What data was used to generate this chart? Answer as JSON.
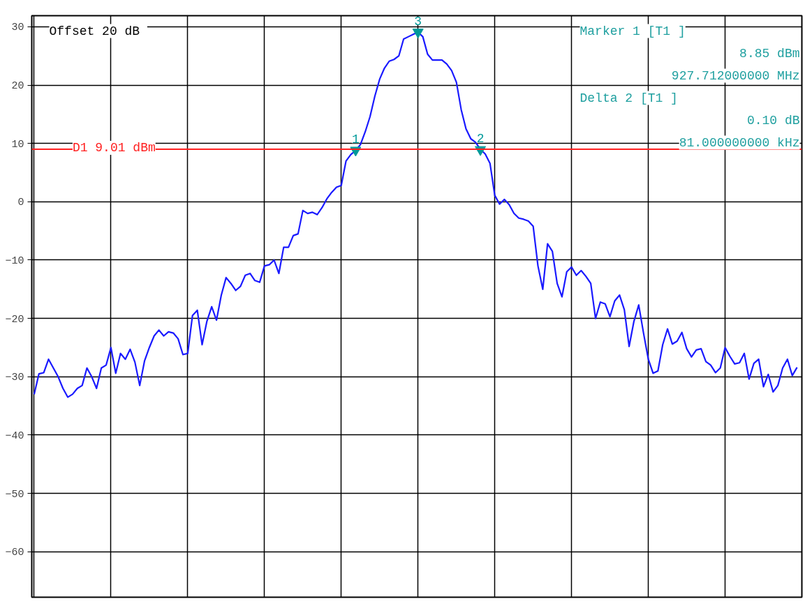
{
  "chart_data": {
    "type": "line",
    "categories": [
      null,
      null,
      null,
      null,
      null,
      null,
      null,
      null,
      null,
      null,
      null,
      null,
      null,
      null,
      null,
      null,
      null,
      null,
      null,
      null,
      null,
      null,
      null,
      null,
      null,
      null,
      null,
      null,
      null,
      null,
      null,
      null,
      null,
      null,
      null,
      null,
      null,
      null,
      null,
      null,
      null,
      null,
      null,
      null,
      null,
      null,
      null,
      null,
      null,
      null,
      null,
      null,
      null,
      null,
      null,
      null,
      null,
      null,
      null,
      null,
      null,
      null,
      null,
      null,
      null,
      null,
      null,
      null,
      null,
      null,
      null,
      null,
      null,
      null,
      null,
      null,
      null,
      null,
      null,
      null,
      null,
      null,
      null,
      null,
      null,
      null,
      null,
      null,
      null,
      null,
      null,
      null,
      null,
      null,
      null,
      null,
      null,
      null,
      null,
      null,
      null,
      null,
      null,
      null,
      null,
      null,
      null,
      null,
      null,
      null,
      null,
      null,
      null,
      null,
      null,
      null,
      null,
      null,
      null,
      null,
      null,
      null,
      null,
      null,
      null,
      null,
      null,
      null,
      null,
      null,
      null,
      null,
      null,
      null,
      null,
      null,
      null,
      null,
      null,
      null,
      null,
      null,
      null,
      null,
      null,
      null,
      null,
      null,
      null,
      null,
      null,
      null,
      null,
      null,
      null,
      null,
      null,
      null,
      null,
      null
    ],
    "series": [
      {
        "color": "#1a1aff",
        "values": [
          -33,
          -29.5,
          -29.3,
          -27,
          -28.5,
          -30,
          -32,
          -33.5,
          -33,
          -32,
          -31.5,
          -28.5,
          -30,
          -32,
          -28.5,
          -28,
          -25,
          -29.4,
          -26,
          -27,
          -25.3,
          -27.5,
          -31.5,
          -27.3,
          -25,
          -23,
          -22,
          -23,
          -22.3,
          -22.5,
          -23.5,
          -26.2,
          -26,
          -19.5,
          -18.6,
          -24.5,
          -20.5,
          -18,
          -20.3,
          -16,
          -13,
          -14,
          -15.2,
          -14.5,
          -12.6,
          -12.3,
          -13.5,
          -13.8,
          -11,
          -10.8,
          -10,
          -12.3,
          -7.8,
          -7.8,
          -5.8,
          -5.5,
          -1.5,
          -2,
          -1.8,
          -2.2,
          -1,
          0.5,
          1.6,
          2.5,
          2.8,
          7,
          8.1,
          8.8,
          9.8,
          12,
          14.6,
          18.1,
          21,
          22.9,
          24.1,
          24.4,
          25,
          27.9,
          28.3,
          28.7,
          29.1,
          28.3,
          25.3,
          24.3,
          24.3,
          24.3,
          23.6,
          22.5,
          20.5,
          15.8,
          12.5,
          10.8,
          10.2,
          9.0,
          8.2,
          6.6,
          1.1,
          -0.4,
          0.4,
          -0.5,
          -2,
          -2.8,
          -3,
          -3.3,
          -4.2,
          -11,
          -15,
          -7.2,
          -8.5,
          -14,
          -16.3,
          -12,
          -11.2,
          -12.6,
          -11.8,
          -12.8,
          -14,
          -20,
          -17.2,
          -17.5,
          -19.7,
          -17,
          -16,
          -18.5,
          -24.8,
          -20.5,
          -17.7,
          -22.5,
          -27,
          -29.4,
          -29,
          -24.5,
          -21.8,
          -24.4,
          -23.9,
          -22.4,
          -25.2,
          -26.6,
          -25.4,
          -25.2,
          -27.4,
          -28,
          -29.3,
          -28.5,
          -25,
          -26.5,
          -27.8,
          -27.6,
          -26,
          -30.4,
          -27.7,
          -27,
          -31.7,
          -29.6,
          -32.6,
          -31.5,
          -28.5,
          -27,
          -29.8,
          -28.4
        ]
      },
      {
        "type": "scatter",
        "name": "1",
        "marker": "triangle",
        "color": "#009999",
        "values": [
          null,
          null,
          null,
          null,
          null,
          null,
          null,
          null,
          null,
          null,
          null,
          null,
          null,
          null,
          null,
          null,
          null,
          null,
          null,
          null,
          null,
          null,
          null,
          null,
          null,
          null,
          null,
          null,
          null,
          null,
          null,
          null,
          null,
          null,
          null,
          null,
          null,
          null,
          null,
          null,
          null,
          null,
          null,
          null,
          null,
          null,
          null,
          null,
          null,
          null,
          null,
          null,
          null,
          null,
          null,
          null,
          null,
          null,
          null,
          null,
          null,
          null,
          null,
          null,
          null,
          null,
          null,
          8.85,
          null,
          null,
          null,
          null,
          null,
          null,
          null,
          null,
          null,
          null,
          null,
          null,
          null,
          null,
          null,
          null,
          null,
          null,
          null,
          null,
          null,
          null,
          null,
          null,
          null,
          null,
          null,
          null,
          null,
          null,
          null,
          null,
          null,
          null,
          null,
          null,
          null,
          null,
          null,
          null,
          null,
          null,
          null,
          null,
          null,
          null,
          null,
          null,
          null,
          null,
          null,
          null,
          null,
          null,
          null,
          null,
          null,
          null,
          null,
          null,
          null,
          null,
          null,
          null,
          null,
          null,
          null,
          null,
          null,
          null,
          null,
          null,
          null,
          null,
          null,
          null,
          null,
          null,
          null,
          null,
          null,
          null,
          null,
          null,
          null,
          null,
          null,
          null,
          null,
          null,
          null,
          null
        ]
      },
      {
        "type": "scatter",
        "name": "3",
        "marker": "triangle",
        "color": "#009999",
        "values": [
          null,
          null,
          null,
          null,
          null,
          null,
          null,
          null,
          null,
          null,
          null,
          null,
          null,
          null,
          null,
          null,
          null,
          null,
          null,
          null,
          null,
          null,
          null,
          null,
          null,
          null,
          null,
          null,
          null,
          null,
          null,
          null,
          null,
          null,
          null,
          null,
          null,
          null,
          null,
          null,
          null,
          null,
          null,
          null,
          null,
          null,
          null,
          null,
          null,
          null,
          null,
          null,
          null,
          null,
          null,
          null,
          null,
          null,
          null,
          null,
          null,
          null,
          null,
          null,
          null,
          null,
          null,
          null,
          null,
          null,
          null,
          null,
          null,
          null,
          null,
          null,
          null,
          null,
          null,
          null,
          29.1,
          null,
          null,
          null,
          null,
          null,
          null,
          null,
          null,
          null,
          null,
          null,
          null,
          null,
          null,
          null,
          null,
          null,
          null,
          null,
          null,
          null,
          null,
          null,
          null,
          null,
          null,
          null,
          null,
          null,
          null,
          null,
          null,
          null,
          null,
          null,
          null,
          null,
          null,
          null,
          null,
          null,
          null,
          null,
          null,
          null,
          null,
          null,
          null,
          null,
          null,
          null,
          null,
          null,
          null,
          null,
          null,
          null,
          null,
          null,
          null,
          null,
          null,
          null,
          null,
          null,
          null,
          null,
          null,
          null,
          null,
          null,
          null,
          null,
          null,
          null,
          null,
          null,
          null,
          null
        ]
      },
      {
        "type": "scatter",
        "name": "2",
        "marker": "triangle",
        "color": "#009999",
        "values": [
          null,
          null,
          null,
          null,
          null,
          null,
          null,
          null,
          null,
          null,
          null,
          null,
          null,
          null,
          null,
          null,
          null,
          null,
          null,
          null,
          null,
          null,
          null,
          null,
          null,
          null,
          null,
          null,
          null,
          null,
          null,
          null,
          null,
          null,
          null,
          null,
          null,
          null,
          null,
          null,
          null,
          null,
          null,
          null,
          null,
          null,
          null,
          null,
          null,
          null,
          null,
          null,
          null,
          null,
          null,
          null,
          null,
          null,
          null,
          null,
          null,
          null,
          null,
          null,
          null,
          null,
          null,
          null,
          null,
          null,
          null,
          null,
          null,
          null,
          null,
          null,
          null,
          null,
          null,
          null,
          null,
          null,
          null,
          null,
          null,
          null,
          null,
          null,
          null,
          null,
          null,
          null,
          null,
          8.95,
          null,
          null,
          null,
          null,
          null,
          null,
          null,
          null,
          null,
          null,
          null,
          null,
          null,
          null,
          null,
          null,
          null,
          null,
          null,
          null,
          null,
          null,
          null,
          null,
          null,
          null,
          null,
          null,
          null,
          null,
          null,
          null,
          null,
          null,
          null,
          null,
          null,
          null,
          null,
          null,
          null,
          null,
          null,
          null,
          null,
          null,
          null,
          null,
          null,
          null,
          null,
          null,
          null,
          null,
          null,
          null,
          null,
          null,
          null,
          null,
          null,
          null,
          null,
          null,
          null,
          null
        ]
      }
    ],
    "ylim": [
      -67.8,
      31.9
    ],
    "yticks": [
      -60,
      -50,
      -40,
      -30,
      -20,
      -10,
      0,
      10,
      20,
      30
    ],
    "grid": true,
    "ref_lines": [
      {
        "axis": "y",
        "value": 9.01,
        "label": "D1 9.01 dBm",
        "color": "#ff2020"
      }
    ],
    "annotations": [
      "Offset  20 dB",
      "Marker 1 [T1 ]",
      "8.85 dBm",
      "927.712000000 MHz",
      "Delta 2 [T1 ]",
      "0.10 dB",
      "81.000000000 kHz"
    ]
  }
}
